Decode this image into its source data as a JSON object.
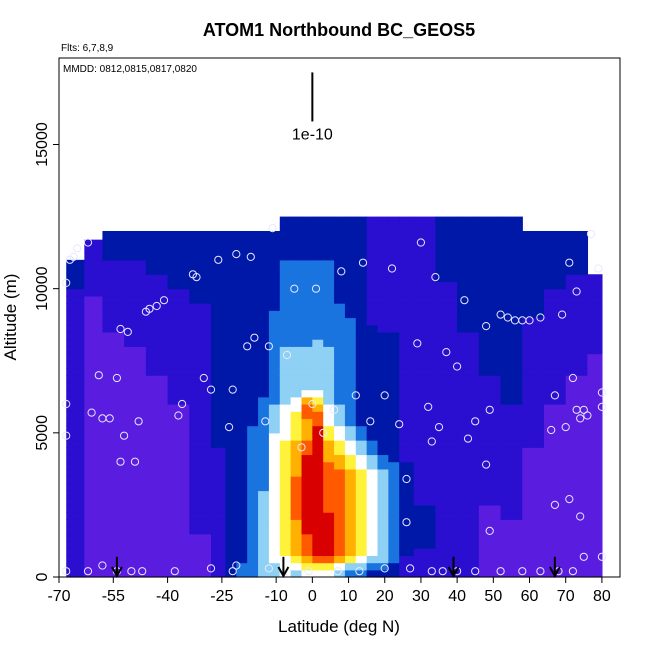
{
  "chart_data": {
    "type": "heatmap",
    "title": "ATOM1 Northbound BC_GEOS5",
    "subtitle_flights": "Flts: 6,7,8,9",
    "subtitle_dates": "MMDD: 0812,0815,0817,0820",
    "xlabel": "Latitude (deg N)",
    "ylabel": "Altitude (m)",
    "xlim": [
      -70,
      85
    ],
    "ylim": [
      0,
      18000
    ],
    "xticks": [
      "-70",
      "-55",
      "-40",
      "-25",
      "-10",
      "0",
      "10",
      "20",
      "30",
      "40",
      "50",
      "60",
      "70",
      "80"
    ],
    "xtick_values": [
      -70,
      -55,
      -40,
      -25,
      -10,
      0,
      10,
      20,
      30,
      40,
      50,
      60,
      70,
      80
    ],
    "yticks": [
      "0",
      "5000",
      "10000",
      "15000"
    ],
    "ytick_values": [
      0,
      5000,
      10000,
      15000
    ],
    "scale_label": "1e-10",
    "scale_bar": {
      "lat": 0,
      "alt_top": 17500,
      "alt_bottom": 15800
    },
    "colormap": [
      "#7b2fe0",
      "#5a1de0",
      "#2a0fd0",
      "#0018a8",
      "#1a74e0",
      "#8fd0f5",
      "#ffffff",
      "#fff23a",
      "#ffb000",
      "#ff5a00",
      "#d80000"
    ],
    "grid": false,
    "columns": [
      {
        "x0": -68,
        "x1": -63,
        "top": 11000,
        "levels": [
          [
            0,
            2
          ],
          [
            9000,
            2
          ],
          [
            11000,
            3
          ]
        ]
      },
      {
        "x0": -63,
        "x1": -58,
        "top": 11700,
        "levels": [
          [
            0,
            1
          ],
          [
            8000,
            1
          ],
          [
            11700,
            2
          ]
        ]
      },
      {
        "x0": -58,
        "x1": -52,
        "top": 12000,
        "levels": [
          [
            0,
            1
          ],
          [
            7000,
            1
          ],
          [
            10000,
            2
          ],
          [
            12000,
            3
          ]
        ]
      },
      {
        "x0": -52,
        "x1": -46,
        "top": 12000,
        "levels": [
          [
            0,
            1
          ],
          [
            6000,
            1
          ],
          [
            10000,
            2
          ],
          [
            12000,
            3
          ]
        ]
      },
      {
        "x0": -46,
        "x1": -40,
        "top": 12000,
        "levels": [
          [
            0,
            1
          ],
          [
            5000,
            1
          ],
          [
            9000,
            2
          ],
          [
            12000,
            3
          ]
        ]
      },
      {
        "x0": -40,
        "x1": -34,
        "top": 12000,
        "levels": [
          [
            0,
            1
          ],
          [
            4000,
            1
          ],
          [
            8000,
            2
          ],
          [
            12000,
            3
          ]
        ]
      },
      {
        "x0": -34,
        "x1": -28,
        "top": 12000,
        "levels": [
          [
            0,
            1
          ],
          [
            3000,
            2
          ],
          [
            7000,
            2
          ],
          [
            12000,
            3
          ]
        ]
      },
      {
        "x0": -28,
        "x1": -24,
        "top": 12000,
        "levels": [
          [
            0,
            2
          ],
          [
            3000,
            2
          ],
          [
            6000,
            3
          ],
          [
            12000,
            3
          ]
        ]
      },
      {
        "x0": -24,
        "x1": -21,
        "top": 12000,
        "levels": [
          [
            0,
            3
          ],
          [
            1000,
            3
          ],
          [
            5000,
            3
          ],
          [
            12000,
            3
          ]
        ]
      },
      {
        "x0": -21,
        "x1": -18,
        "top": 12000,
        "levels": [
          [
            0,
            4
          ],
          [
            1000,
            3
          ],
          [
            4500,
            3
          ],
          [
            12000,
            3
          ]
        ]
      },
      {
        "x0": -18,
        "x1": -15,
        "top": 12000,
        "levels": [
          [
            0,
            4
          ],
          [
            1500,
            4
          ],
          [
            5000,
            4
          ],
          [
            5600,
            3
          ],
          [
            12000,
            3
          ]
        ]
      },
      {
        "x0": -15,
        "x1": -12,
        "top": 12000,
        "levels": [
          [
            0,
            5
          ],
          [
            1500,
            5
          ],
          [
            4500,
            4
          ],
          [
            6000,
            4
          ],
          [
            6500,
            3
          ],
          [
            12000,
            3
          ]
        ]
      },
      {
        "x0": -12,
        "x1": -9,
        "top": 12000,
        "levels": [
          [
            0,
            5
          ],
          [
            1000,
            6
          ],
          [
            4500,
            6
          ],
          [
            5500,
            5
          ],
          [
            6500,
            4
          ],
          [
            12000,
            3
          ]
        ]
      },
      {
        "x0": -9,
        "x1": -6,
        "top": 12500,
        "levels": [
          [
            0,
            6
          ],
          [
            1500,
            7
          ],
          [
            4000,
            7
          ],
          [
            5500,
            6
          ],
          [
            6500,
            5
          ],
          [
            12500,
            3
          ]
        ]
      },
      {
        "x0": -6,
        "x1": -3,
        "top": 12500,
        "levels": [
          [
            0,
            5
          ],
          [
            800,
            8
          ],
          [
            3000,
            9
          ],
          [
            4000,
            8
          ],
          [
            5500,
            7
          ],
          [
            6500,
            5
          ],
          [
            12500,
            3
          ]
        ]
      },
      {
        "x0": -3,
        "x1": 0,
        "top": 12500,
        "levels": [
          [
            0,
            5
          ],
          [
            800,
            9
          ],
          [
            2000,
            10
          ],
          [
            4000,
            10
          ],
          [
            5000,
            8
          ],
          [
            6000,
            9
          ],
          [
            6500,
            5
          ],
          [
            12500,
            3
          ]
        ]
      },
      {
        "x0": 0,
        "x1": 3,
        "top": 12500,
        "levels": [
          [
            0,
            5
          ],
          [
            800,
            10
          ],
          [
            3000,
            10
          ],
          [
            5000,
            10
          ],
          [
            6000,
            8
          ],
          [
            6700,
            5
          ],
          [
            12500,
            3
          ]
        ]
      },
      {
        "x0": 3,
        "x1": 6,
        "top": 12500,
        "levels": [
          [
            0,
            5
          ],
          [
            800,
            10
          ],
          [
            3500,
            9
          ],
          [
            4500,
            8
          ],
          [
            5500,
            6
          ],
          [
            6500,
            5
          ],
          [
            12500,
            3
          ]
        ]
      },
      {
        "x0": 6,
        "x1": 9,
        "top": 12500,
        "levels": [
          [
            0,
            4
          ],
          [
            800,
            9
          ],
          [
            3500,
            9
          ],
          [
            4500,
            7
          ],
          [
            5500,
            5
          ],
          [
            6500,
            4
          ],
          [
            12500,
            3
          ]
        ]
      },
      {
        "x0": 9,
        "x1": 12,
        "top": 12500,
        "levels": [
          [
            0,
            3
          ],
          [
            800,
            8
          ],
          [
            3500,
            8
          ],
          [
            4500,
            6
          ],
          [
            5500,
            4
          ],
          [
            12500,
            3
          ]
        ]
      },
      {
        "x0": 12,
        "x1": 15,
        "top": 12500,
        "levels": [
          [
            0,
            3
          ],
          [
            800,
            7
          ],
          [
            3500,
            7
          ],
          [
            4500,
            5
          ],
          [
            5500,
            3
          ],
          [
            12500,
            3
          ]
        ]
      },
      {
        "x0": 15,
        "x1": 18,
        "top": 12500,
        "levels": [
          [
            0,
            3
          ],
          [
            800,
            6
          ],
          [
            3500,
            6
          ],
          [
            4500,
            4
          ],
          [
            5000,
            3
          ],
          [
            12500,
            2
          ]
        ]
      },
      {
        "x0": 18,
        "x1": 21,
        "top": 12500,
        "levels": [
          [
            0,
            3
          ],
          [
            800,
            5
          ],
          [
            3500,
            5
          ],
          [
            4500,
            3
          ],
          [
            12500,
            2
          ]
        ]
      },
      {
        "x0": 21,
        "x1": 24,
        "top": 12500,
        "levels": [
          [
            0,
            3
          ],
          [
            1000,
            4
          ],
          [
            3500,
            4
          ],
          [
            4500,
            3
          ],
          [
            12500,
            2
          ]
        ]
      },
      {
        "x0": 24,
        "x1": 28,
        "top": 12500,
        "levels": [
          [
            0,
            2
          ],
          [
            1500,
            3
          ],
          [
            3500,
            3
          ],
          [
            4500,
            2
          ],
          [
            12500,
            2
          ]
        ]
      },
      {
        "x0": 28,
        "x1": 34,
        "top": 12500,
        "levels": [
          [
            0,
            2
          ],
          [
            2000,
            3
          ],
          [
            3000,
            2
          ],
          [
            12500,
            2
          ]
        ]
      },
      {
        "x0": 34,
        "x1": 40,
        "top": 12500,
        "levels": [
          [
            0,
            2
          ],
          [
            8000,
            2
          ],
          [
            12500,
            3
          ]
        ]
      },
      {
        "x0": 40,
        "x1": 46,
        "top": 12500,
        "levels": [
          [
            0,
            2
          ],
          [
            7000,
            2
          ],
          [
            10000,
            3
          ],
          [
            12500,
            3
          ]
        ]
      },
      {
        "x0": 46,
        "x1": 52,
        "top": 12500,
        "levels": [
          [
            0,
            1
          ],
          [
            5000,
            2
          ],
          [
            9000,
            3
          ],
          [
            12500,
            3
          ]
        ]
      },
      {
        "x0": 52,
        "x1": 58,
        "top": 12500,
        "levels": [
          [
            0,
            1
          ],
          [
            4000,
            2
          ],
          [
            8000,
            3
          ],
          [
            12500,
            3
          ]
        ]
      },
      {
        "x0": 58,
        "x1": 64,
        "top": 12000,
        "levels": [
          [
            0,
            1
          ],
          [
            3000,
            1
          ],
          [
            6000,
            2
          ],
          [
            12000,
            3
          ]
        ]
      },
      {
        "x0": 64,
        "x1": 70,
        "top": 12000,
        "levels": [
          [
            0,
            1
          ],
          [
            4000,
            1
          ],
          [
            8000,
            2
          ],
          [
            12000,
            3
          ]
        ]
      },
      {
        "x0": 70,
        "x1": 76,
        "top": 12000,
        "levels": [
          [
            0,
            1
          ],
          [
            5000,
            1
          ],
          [
            9000,
            2
          ],
          [
            12000,
            3
          ]
        ]
      },
      {
        "x0": 76,
        "x1": 80,
        "top": 10500,
        "levels": [
          [
            0,
            1
          ],
          [
            5000,
            1
          ],
          [
            10500,
            2
          ]
        ]
      }
    ],
    "sample_points": [
      [
        -68,
        10200
      ],
      [
        -67,
        11000
      ],
      [
        -66,
        11100
      ],
      [
        -65,
        11400
      ],
      [
        -62,
        11600
      ],
      [
        -68,
        6000
      ],
      [
        -68,
        4900
      ],
      [
        -61,
        5700
      ],
      [
        -59,
        7000
      ],
      [
        -58,
        5500
      ],
      [
        -56,
        5500
      ],
      [
        -54,
        6900
      ],
      [
        -53,
        8600
      ],
      [
        -51,
        8500
      ],
      [
        -52,
        4900
      ],
      [
        -53,
        4000
      ],
      [
        -49,
        4000
      ],
      [
        -48,
        5400
      ],
      [
        -46,
        9200
      ],
      [
        -45,
        9300
      ],
      [
        -43,
        9400
      ],
      [
        -41,
        9600
      ],
      [
        -37,
        5600
      ],
      [
        -36,
        6000
      ],
      [
        -33,
        10500
      ],
      [
        -32,
        10400
      ],
      [
        -30,
        6900
      ],
      [
        -28,
        6500
      ],
      [
        -26,
        11000
      ],
      [
        -23,
        5200
      ],
      [
        -22,
        6500
      ],
      [
        -21,
        11200
      ],
      [
        -17,
        11100
      ],
      [
        -18,
        8000
      ],
      [
        -16,
        8300
      ],
      [
        -12,
        8000
      ],
      [
        -13,
        5400
      ],
      [
        -11,
        12100
      ],
      [
        -7,
        7700
      ],
      [
        -5,
        10000
      ],
      [
        -3,
        4500
      ],
      [
        0,
        6000
      ],
      [
        1,
        10000
      ],
      [
        3,
        5000
      ],
      [
        6,
        5800
      ],
      [
        8,
        10600
      ],
      [
        12,
        6300
      ],
      [
        14,
        10900
      ],
      [
        16,
        5400
      ],
      [
        20,
        6300
      ],
      [
        22,
        10700
      ],
      [
        24,
        5300
      ],
      [
        26,
        3400
      ],
      [
        26,
        1900
      ],
      [
        29,
        8100
      ],
      [
        30,
        11600
      ],
      [
        32,
        5900
      ],
      [
        33,
        4700
      ],
      [
        34,
        10400
      ],
      [
        35,
        5200
      ],
      [
        37,
        7800
      ],
      [
        40,
        7300
      ],
      [
        42,
        9600
      ],
      [
        43,
        4800
      ],
      [
        45,
        5400
      ],
      [
        48,
        8700
      ],
      [
        48,
        3900
      ],
      [
        49,
        5800
      ],
      [
        49,
        1600
      ],
      [
        52,
        9100
      ],
      [
        54,
        9000
      ],
      [
        56,
        8900
      ],
      [
        58,
        8900
      ],
      [
        60,
        8900
      ],
      [
        63,
        9000
      ],
      [
        66,
        5100
      ],
      [
        67,
        6300
      ],
      [
        69,
        9100
      ],
      [
        70,
        5200
      ],
      [
        71,
        10900
      ],
      [
        72,
        6900
      ],
      [
        73,
        5800
      ],
      [
        73,
        9900
      ],
      [
        74,
        5500
      ],
      [
        75,
        5800
      ],
      [
        76,
        5600
      ],
      [
        77,
        11900
      ],
      [
        79,
        10700
      ],
      [
        80,
        5900
      ],
      [
        80,
        6400
      ],
      [
        67,
        2500
      ],
      [
        71,
        2700
      ],
      [
        74,
        2100
      ],
      [
        80,
        700
      ],
      [
        75,
        700
      ],
      [
        -68,
        200
      ],
      [
        -62,
        200
      ],
      [
        -58,
        400
      ],
      [
        -54,
        200
      ],
      [
        -50,
        200
      ],
      [
        -47,
        200
      ],
      [
        -38,
        200
      ],
      [
        -28,
        300
      ],
      [
        -22,
        200
      ],
      [
        -21,
        400
      ],
      [
        -12,
        300
      ],
      [
        -8,
        100
      ],
      [
        -1,
        200
      ],
      [
        7,
        200
      ],
      [
        13,
        200
      ],
      [
        20,
        300
      ],
      [
        27,
        300
      ],
      [
        33,
        200
      ],
      [
        36,
        200
      ],
      [
        40,
        200
      ],
      [
        45,
        200
      ],
      [
        52,
        200
      ],
      [
        58,
        200
      ],
      [
        63,
        200
      ],
      [
        68,
        200
      ],
      [
        72,
        200
      ]
    ],
    "arrows": [
      -54,
      -8,
      39,
      67
    ]
  }
}
